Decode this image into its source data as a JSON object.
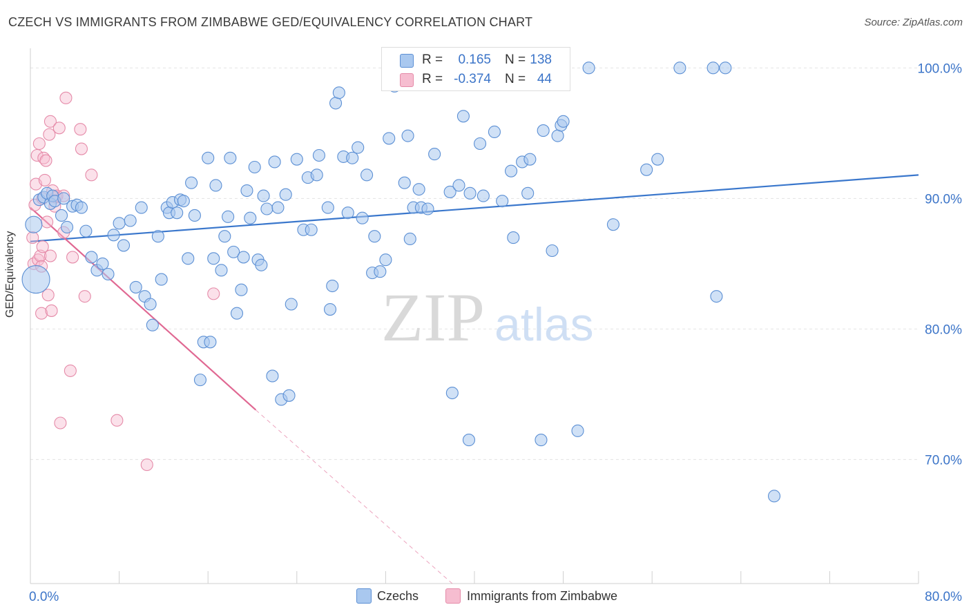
{
  "title": "CZECH VS IMMIGRANTS FROM ZIMBABWE GED/EQUIVALENCY CORRELATION CHART",
  "source": "Source: ZipAtlas.com",
  "watermark": {
    "zip": "ZIP",
    "atlas": "atlas"
  },
  "colors": {
    "czech_fill": "#a9c8ef",
    "czech_stroke": "#5b8fd4",
    "czech_line": "#3a77cc",
    "zim_fill": "#f6bdd0",
    "zim_stroke": "#e58aa8",
    "zim_line": "#e06892",
    "axis_label": "#3b74c8",
    "grid": "#e2e2e2"
  },
  "legend_top": [
    {
      "r_label": "R =",
      "r_value": "0.165",
      "n_label": "N =",
      "n_value": "138"
    },
    {
      "r_label": "R =",
      "r_value": "-0.374",
      "n_label": "N =",
      "n_value": "44"
    }
  ],
  "legend_bottom": [
    "Czechs",
    "Immigrants from Zimbabwe"
  ],
  "chart_data": {
    "type": "scatter",
    "title": "CZECH VS IMMIGRANTS FROM ZIMBABWE GED/EQUIVALENCY CORRELATION CHART",
    "xlabel": "",
    "ylabel": "GED/Equivalency",
    "xlim": [
      0,
      80
    ],
    "ylim": [
      60.5,
      101.5
    ],
    "x_tick_labels": [
      "0.0%",
      "80.0%"
    ],
    "y_ticks": [
      70,
      80,
      90,
      100
    ],
    "y_tick_labels": [
      "70.0%",
      "80.0%",
      "90.0%",
      "100.0%"
    ],
    "grid": true,
    "legend_position": "top-center",
    "series": [
      {
        "name": "Czechs",
        "trend": {
          "x": [
            0,
            80
          ],
          "y": [
            86.7,
            91.8
          ]
        },
        "points": [
          [
            0.3,
            88.0
          ],
          [
            0.5,
            83.8
          ],
          [
            0.8,
            89.9
          ],
          [
            1.2,
            90.1
          ],
          [
            1.5,
            90.4
          ],
          [
            1.8,
            89.6
          ],
          [
            2.0,
            90.2
          ],
          [
            2.2,
            89.8
          ],
          [
            2.8,
            88.7
          ],
          [
            3.0,
            90.0
          ],
          [
            3.3,
            87.8
          ],
          [
            3.8,
            89.4
          ],
          [
            4.2,
            89.5
          ],
          [
            4.6,
            89.3
          ],
          [
            5.0,
            87.5
          ],
          [
            5.5,
            85.5
          ],
          [
            6.0,
            84.5
          ],
          [
            6.5,
            85.0
          ],
          [
            7.0,
            84.2
          ],
          [
            7.5,
            87.2
          ],
          [
            8.0,
            88.1
          ],
          [
            8.4,
            86.4
          ],
          [
            9.0,
            88.3
          ],
          [
            9.5,
            83.2
          ],
          [
            10.0,
            89.3
          ],
          [
            10.3,
            82.5
          ],
          [
            10.8,
            81.9
          ],
          [
            11.0,
            80.3
          ],
          [
            11.5,
            87.1
          ],
          [
            11.8,
            83.8
          ],
          [
            12.3,
            89.3
          ],
          [
            12.5,
            88.9
          ],
          [
            12.8,
            89.7
          ],
          [
            13.2,
            88.9
          ],
          [
            13.5,
            89.9
          ],
          [
            13.8,
            89.8
          ],
          [
            14.2,
            85.4
          ],
          [
            14.5,
            91.2
          ],
          [
            14.8,
            88.7
          ],
          [
            15.3,
            76.1
          ],
          [
            15.6,
            79.0
          ],
          [
            16.0,
            93.1
          ],
          [
            16.2,
            79.0
          ],
          [
            16.5,
            85.4
          ],
          [
            16.7,
            91.0
          ],
          [
            17.2,
            84.5
          ],
          [
            17.5,
            87.1
          ],
          [
            17.8,
            88.6
          ],
          [
            18.0,
            93.1
          ],
          [
            18.3,
            85.9
          ],
          [
            18.6,
            81.2
          ],
          [
            19.0,
            83.0
          ],
          [
            19.2,
            85.5
          ],
          [
            19.5,
            90.6
          ],
          [
            19.8,
            88.5
          ],
          [
            20.2,
            92.4
          ],
          [
            20.5,
            85.3
          ],
          [
            20.8,
            84.9
          ],
          [
            21.0,
            90.2
          ],
          [
            21.3,
            89.2
          ],
          [
            21.8,
            76.4
          ],
          [
            22.0,
            92.8
          ],
          [
            22.3,
            89.3
          ],
          [
            22.6,
            74.6
          ],
          [
            23.0,
            90.3
          ],
          [
            23.3,
            74.9
          ],
          [
            23.5,
            81.9
          ],
          [
            24.0,
            93.0
          ],
          [
            24.6,
            87.6
          ],
          [
            25.0,
            91.6
          ],
          [
            25.3,
            87.6
          ],
          [
            25.8,
            91.8
          ],
          [
            26.0,
            93.3
          ],
          [
            26.8,
            89.3
          ],
          [
            27.0,
            81.5
          ],
          [
            27.2,
            83.3
          ],
          [
            27.5,
            97.3
          ],
          [
            27.8,
            98.1
          ],
          [
            28.2,
            93.2
          ],
          [
            28.6,
            88.9
          ],
          [
            29.0,
            93.1
          ],
          [
            29.5,
            93.9
          ],
          [
            29.9,
            88.5
          ],
          [
            30.3,
            91.8
          ],
          [
            30.8,
            84.3
          ],
          [
            31.0,
            87.1
          ],
          [
            31.5,
            84.4
          ],
          [
            32.0,
            85.3
          ],
          [
            32.3,
            94.6
          ],
          [
            32.8,
            98.6
          ],
          [
            33.7,
            91.2
          ],
          [
            34.0,
            94.8
          ],
          [
            34.2,
            86.9
          ],
          [
            34.5,
            89.3
          ],
          [
            35.0,
            90.7
          ],
          [
            35.2,
            89.3
          ],
          [
            35.8,
            89.2
          ],
          [
            36.4,
            93.4
          ],
          [
            37.0,
            100.0
          ],
          [
            37.8,
            90.5
          ],
          [
            38.0,
            75.1
          ],
          [
            38.6,
            91.0
          ],
          [
            39.0,
            96.3
          ],
          [
            39.5,
            71.5
          ],
          [
            39.6,
            90.4
          ],
          [
            40.5,
            94.2
          ],
          [
            40.8,
            90.2
          ],
          [
            41.8,
            95.1
          ],
          [
            42.5,
            89.8
          ],
          [
            43.3,
            92.1
          ],
          [
            43.5,
            87.0
          ],
          [
            44.3,
            92.8
          ],
          [
            44.8,
            90.4
          ],
          [
            45.0,
            93.0
          ],
          [
            46.0,
            71.5
          ],
          [
            46.2,
            95.2
          ],
          [
            47.0,
            86.0
          ],
          [
            47.5,
            94.8
          ],
          [
            47.8,
            95.6
          ],
          [
            48.0,
            95.9
          ],
          [
            49.3,
            72.2
          ],
          [
            50.3,
            100.0
          ],
          [
            52.5,
            88.0
          ],
          [
            55.5,
            92.2
          ],
          [
            56.5,
            93.0
          ],
          [
            58.5,
            100.0
          ],
          [
            61.5,
            100.0
          ],
          [
            61.8,
            82.5
          ],
          [
            62.6,
            100.0
          ],
          [
            67.0,
            67.2
          ]
        ]
      },
      {
        "name": "Immigrants from Zimbabwe",
        "trend": {
          "x": [
            0,
            20.3
          ],
          "y": [
            89.3,
            73.8
          ]
        },
        "trend_extension": {
          "x": [
            20.3,
            38.0
          ],
          "y": [
            73.8,
            60.5
          ]
        },
        "points": [
          [
            0.2,
            87.0
          ],
          [
            0.3,
            85.0
          ],
          [
            0.4,
            89.5
          ],
          [
            0.5,
            91.1
          ],
          [
            0.6,
            93.3
          ],
          [
            0.7,
            85.3
          ],
          [
            0.8,
            94.2
          ],
          [
            0.9,
            85.6
          ],
          [
            1.0,
            84.8
          ],
          [
            1.0,
            81.2
          ],
          [
            1.1,
            90.0
          ],
          [
            1.1,
            86.3
          ],
          [
            1.2,
            93.1
          ],
          [
            1.3,
            91.4
          ],
          [
            1.4,
            92.9
          ],
          [
            1.5,
            88.2
          ],
          [
            1.6,
            82.6
          ],
          [
            1.7,
            94.9
          ],
          [
            1.8,
            95.9
          ],
          [
            1.8,
            85.6
          ],
          [
            1.9,
            81.4
          ],
          [
            2.0,
            90.6
          ],
          [
            2.2,
            89.4
          ],
          [
            2.3,
            90.1
          ],
          [
            2.4,
            90.2
          ],
          [
            2.6,
            95.4
          ],
          [
            2.7,
            72.8
          ],
          [
            3.0,
            90.2
          ],
          [
            3.0,
            87.4
          ],
          [
            3.2,
            97.7
          ],
          [
            3.6,
            76.8
          ],
          [
            3.8,
            85.5
          ],
          [
            4.5,
            95.3
          ],
          [
            4.6,
            93.8
          ],
          [
            4.9,
            82.5
          ],
          [
            5.5,
            91.8
          ],
          [
            7.8,
            73.0
          ],
          [
            10.5,
            69.6
          ],
          [
            16.5,
            82.7
          ]
        ]
      }
    ]
  }
}
